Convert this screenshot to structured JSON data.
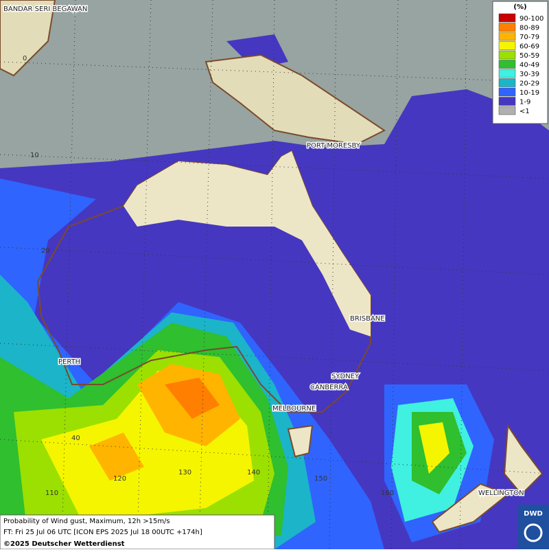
{
  "legend": {
    "title": "(%)",
    "items": [
      {
        "label": "90-100",
        "color": "#c80000"
      },
      {
        "label": "80-89",
        "color": "#ff7f00"
      },
      {
        "label": "70-79",
        "color": "#ffb400"
      },
      {
        "label": "60-69",
        "color": "#f5f500"
      },
      {
        "label": "50-59",
        "color": "#9be000"
      },
      {
        "label": "40-49",
        "color": "#2fbf2f"
      },
      {
        "label": "30-39",
        "color": "#40f0e0"
      },
      {
        "label": "20-29",
        "color": "#1cb4c8"
      },
      {
        "label": "10-19",
        "color": "#2f64ff"
      },
      {
        "label": "1-9",
        "color": "#4637c0"
      },
      {
        "label": "<1",
        "color": "#b0b0b0"
      }
    ]
  },
  "places": [
    "BANDAR SERI BEGAWAN",
    "PORT MORESBY",
    "BRISBANE",
    "PERTH",
    "SYDNEY",
    "CANBERRA",
    "MELBOURNE",
    "WELLINGTON"
  ],
  "grid_labels": [
    "0",
    "10",
    "20",
    "40",
    "110",
    "120",
    "130",
    "140",
    "150",
    "160"
  ],
  "info": {
    "line1": "Probability of Wind gust, Maximum, 12h >15m/s",
    "line2": "FT: Fri 25 Jul 06 UTC [ICON EPS 2025 Jul 18 00UTC +174h]",
    "copyright": "©2025 Deutscher Wetterdienst"
  },
  "logo": "DWD"
}
